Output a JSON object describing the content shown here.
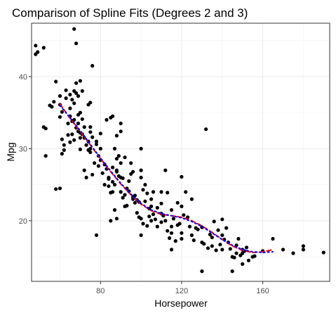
{
  "chart_data": {
    "type": "scatter",
    "title": "Comparison of Spline Fits (Degrees 2 and 3)",
    "xlabel": "Horsepower",
    "ylabel": "Mpg",
    "xlim": [
      46,
      193
    ],
    "ylim": [
      11.6,
      47.4
    ],
    "x_ticks": [
      80,
      120,
      160
    ],
    "y_ticks": [
      20,
      30,
      40
    ],
    "x_minor": [
      60,
      100,
      140,
      180
    ],
    "y_minor": [
      15,
      25,
      35,
      45
    ],
    "grid": true,
    "theme": "bw",
    "points": [
      [
        48,
        43.1
      ],
      [
        48,
        44.3
      ],
      [
        49,
        43.4
      ],
      [
        52,
        44.0
      ],
      [
        52,
        33
      ],
      [
        53,
        32.8
      ],
      [
        53,
        29
      ],
      [
        58,
        24.4
      ],
      [
        60,
        36.1
      ],
      [
        60,
        24.5
      ],
      [
        61,
        35.1
      ],
      [
        63,
        38.1
      ],
      [
        65,
        37.5
      ],
      [
        65,
        35.6
      ],
      [
        65,
        30.9
      ],
      [
        67,
        36.3
      ],
      [
        67,
        46.6
      ],
      [
        67,
        38.0
      ],
      [
        68,
        44.6
      ],
      [
        68,
        39.1
      ],
      [
        69,
        32.4
      ],
      [
        70,
        32.2
      ],
      [
        70,
        29.9
      ],
      [
        70,
        39.4
      ],
      [
        71,
        32.0
      ],
      [
        72,
        31.5
      ],
      [
        74,
        31.0
      ],
      [
        75,
        32.3
      ],
      [
        75,
        33.0
      ],
      [
        75,
        30.0
      ],
      [
        75,
        36.4
      ],
      [
        76,
        31.6
      ],
      [
        76,
        41.5
      ],
      [
        78,
        18.0
      ],
      [
        80,
        32.1
      ],
      [
        80,
        30.0
      ],
      [
        83,
        27.2
      ],
      [
        84,
        26.0
      ],
      [
        85,
        34.3
      ],
      [
        86,
        24.0
      ],
      [
        87,
        30.0
      ],
      [
        88,
        27.0
      ],
      [
        88,
        31.8
      ],
      [
        90,
        24.0
      ],
      [
        90,
        32.4
      ],
      [
        90,
        33.5
      ],
      [
        92,
        22.0
      ],
      [
        95,
        26.5
      ],
      [
        96,
        23.0
      ],
      [
        97,
        22.5
      ],
      [
        100,
        26.0
      ],
      [
        100,
        18.0
      ],
      [
        102,
        25.0
      ],
      [
        105,
        22.0
      ],
      [
        105,
        20.0
      ],
      [
        110,
        24.0
      ],
      [
        110,
        21.0
      ],
      [
        112,
        20.0
      ],
      [
        115,
        19.2
      ],
      [
        115,
        16.0
      ],
      [
        120,
        22.0
      ],
      [
        120,
        17.5
      ],
      [
        125,
        18.0
      ],
      [
        130,
        13.0
      ],
      [
        130,
        17.0
      ],
      [
        132,
        32.7
      ],
      [
        135,
        16.5
      ],
      [
        140,
        18.0
      ],
      [
        140,
        16.0
      ],
      [
        145,
        15.0
      ],
      [
        145,
        13.0
      ],
      [
        150,
        14.0
      ],
      [
        150,
        16.0
      ],
      [
        150,
        15.5
      ],
      [
        153,
        14.5
      ],
      [
        155,
        15.0
      ],
      [
        160,
        15.8
      ],
      [
        165,
        17.5
      ],
      [
        170,
        16.0
      ],
      [
        175,
        15.5
      ],
      [
        180,
        16.5
      ],
      [
        180,
        16.0
      ],
      [
        190,
        15.6
      ],
      [
        55,
        36.0
      ],
      [
        56,
        35.8
      ],
      [
        57,
        36.5
      ],
      [
        58,
        39.3
      ],
      [
        60,
        37.3
      ],
      [
        60,
        34.4
      ],
      [
        61,
        31.3
      ],
      [
        62,
        29.8
      ],
      [
        62,
        30.5
      ],
      [
        63,
        37.0
      ],
      [
        64,
        33.5
      ],
      [
        65,
        34.5
      ],
      [
        66,
        32.0
      ],
      [
        66,
        33.8
      ],
      [
        67,
        34.0
      ],
      [
        67,
        31.2
      ],
      [
        68,
        37.7
      ],
      [
        68,
        32.9
      ],
      [
        69,
        37.3
      ],
      [
        69,
        33.5
      ],
      [
        70,
        35.0
      ],
      [
        70,
        31.5
      ],
      [
        71,
        38.0
      ],
      [
        71,
        34.1
      ],
      [
        72,
        33.0
      ],
      [
        72,
        27.0
      ],
      [
        73,
        26.0
      ],
      [
        74,
        36.1
      ],
      [
        75,
        29.5
      ],
      [
        76,
        26.4
      ],
      [
        77,
        28.0
      ],
      [
        78,
        31.0
      ],
      [
        79,
        29.0
      ],
      [
        80,
        28.4
      ],
      [
        81,
        26.6
      ],
      [
        82,
        25.0
      ],
      [
        83,
        34.0
      ],
      [
        84,
        24.8
      ],
      [
        85,
        23.9
      ],
      [
        85,
        20.0
      ],
      [
        86,
        34.5
      ],
      [
        86,
        25.4
      ],
      [
        87,
        21.5
      ],
      [
        88,
        26.8
      ],
      [
        88,
        20.3
      ],
      [
        89,
        29.0
      ],
      [
        90,
        28.0
      ],
      [
        90,
        26.0
      ],
      [
        91,
        23.2
      ],
      [
        92,
        28.8
      ],
      [
        93,
        24.5
      ],
      [
        94,
        25.5
      ],
      [
        95,
        28.0
      ],
      [
        96,
        26.8
      ],
      [
        97,
        23.5
      ],
      [
        98,
        21.1
      ],
      [
        99,
        22.6
      ],
      [
        100,
        30.0
      ],
      [
        100,
        27.0
      ],
      [
        101,
        24.3
      ],
      [
        103,
        23.8
      ],
      [
        104,
        21.7
      ],
      [
        105,
        23.0
      ],
      [
        106,
        24.0
      ],
      [
        108,
        19.2
      ],
      [
        110,
        22.4
      ],
      [
        112,
        27.0
      ],
      [
        113,
        23.9
      ],
      [
        115,
        21.5
      ],
      [
        116,
        20.3
      ],
      [
        118,
        22.5
      ],
      [
        120,
        26.1
      ],
      [
        122,
        24.0
      ],
      [
        123,
        20.5
      ],
      [
        125,
        23.0
      ],
      [
        127,
        19.0
      ],
      [
        130,
        19.1
      ],
      [
        135,
        17.7
      ],
      [
        136,
        19.9
      ],
      [
        138,
        18.7
      ],
      [
        140,
        20.2
      ],
      [
        142,
        19.0
      ],
      [
        143,
        17.0
      ],
      [
        147,
        15.5
      ],
      [
        148,
        17.5
      ],
      [
        61,
        29.3
      ],
      [
        64,
        31.9
      ],
      [
        66,
        36.8
      ],
      [
        69,
        34.7
      ],
      [
        73,
        30.5
      ],
      [
        74,
        29.8
      ],
      [
        78,
        30.6
      ],
      [
        79,
        27.6
      ],
      [
        82,
        27.8
      ],
      [
        84,
        25.8
      ],
      [
        86,
        27.4
      ],
      [
        87,
        25.0
      ],
      [
        88,
        28.6
      ],
      [
        89,
        26.2
      ],
      [
        91,
        25.9
      ],
      [
        92,
        23.6
      ],
      [
        93,
        22.1
      ],
      [
        94,
        24.1
      ],
      [
        96,
        23.3
      ],
      [
        98,
        22.9
      ],
      [
        99,
        20.5
      ],
      [
        100,
        20.3
      ],
      [
        101,
        19.6
      ],
      [
        102,
        22.7
      ],
      [
        103,
        19.3
      ],
      [
        104,
        20.6
      ],
      [
        106,
        20.9
      ],
      [
        107,
        20.2
      ],
      [
        108,
        21.8
      ],
      [
        110,
        19.8
      ],
      [
        111,
        20.7
      ],
      [
        113,
        18.6
      ],
      [
        114,
        17.6
      ],
      [
        115,
        18.3
      ],
      [
        117,
        17.2
      ],
      [
        118,
        19.4
      ],
      [
        119,
        19.6
      ],
      [
        120,
        18.3
      ],
      [
        121,
        20.8
      ],
      [
        124,
        19.2
      ],
      [
        126,
        17.3
      ],
      [
        128,
        18.8
      ],
      [
        131,
        16.8
      ],
      [
        133,
        16.2
      ],
      [
        134,
        18.1
      ],
      [
        137,
        15.9
      ],
      [
        139,
        16.7
      ],
      [
        141,
        17.4
      ],
      [
        144,
        16.1
      ],
      [
        146,
        14.9
      ],
      [
        147,
        16.6
      ],
      [
        149,
        15.2
      ],
      [
        151,
        15.8
      ],
      [
        152,
        16.3
      ],
      [
        156,
        15.1
      ]
    ],
    "series": [
      {
        "name": "",
        "color": "#ff0000",
        "dash": "6,4",
        "x": [
          60,
          65,
          70,
          75,
          80,
          85,
          90,
          95,
          100,
          105,
          110,
          115,
          120,
          125,
          130,
          135,
          140,
          145,
          150,
          155,
          160,
          165
        ],
        "y": [
          36.2,
          34.2,
          32.4,
          30.5,
          28.6,
          26.8,
          25.1,
          23.6,
          22.3,
          21.4,
          20.9,
          20.7,
          20.5,
          20.0,
          19.3,
          18.4,
          17.4,
          16.5,
          15.9,
          15.6,
          15.7,
          16.0
        ]
      },
      {
        "name": "",
        "color": "#0000ff",
        "dash": "2,4",
        "x": [
          60,
          65,
          70,
          75,
          80,
          85,
          90,
          95,
          100,
          105,
          110,
          115,
          120,
          125,
          130,
          135,
          140,
          145,
          150,
          155,
          160,
          165
        ],
        "y": [
          36.0,
          34.3,
          32.5,
          30.6,
          28.7,
          26.9,
          25.2,
          23.7,
          22.4,
          21.5,
          21.0,
          20.7,
          20.4,
          19.9,
          19.2,
          18.3,
          17.4,
          16.6,
          16.0,
          15.7,
          15.6,
          15.7
        ]
      }
    ]
  }
}
